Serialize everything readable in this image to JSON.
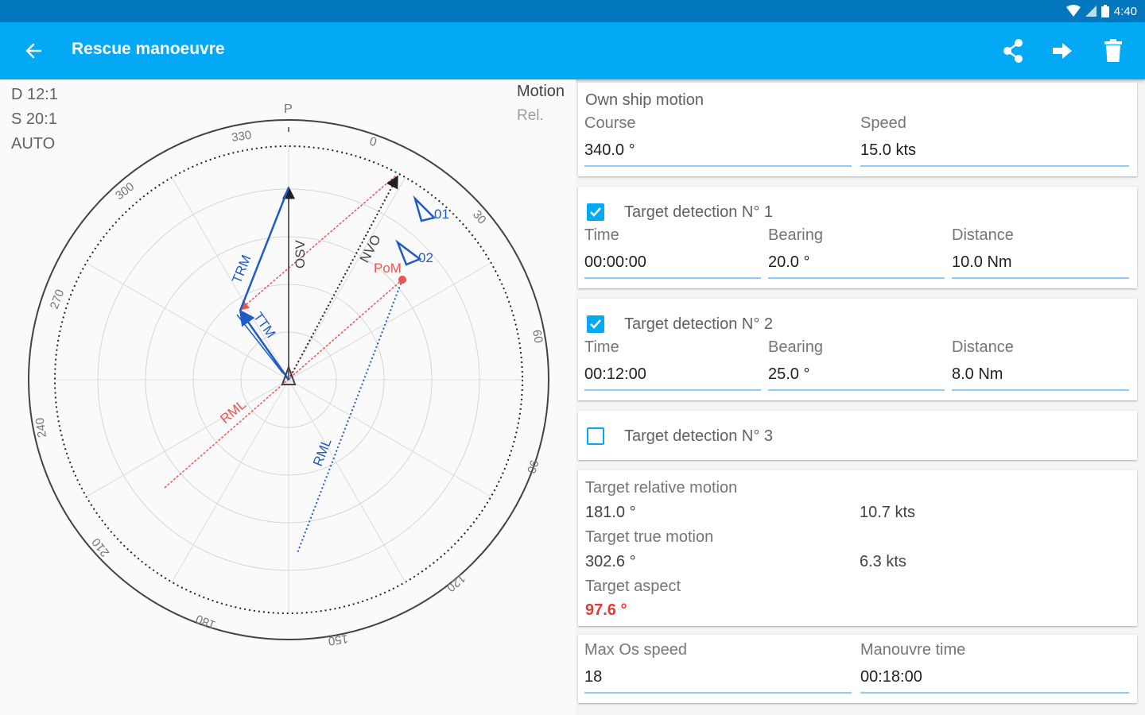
{
  "status_bar": {
    "time": "4:40",
    "icons": [
      "wifi-icon",
      "signal-icon",
      "battery-icon"
    ]
  },
  "app_bar": {
    "title": "Rescue manoeuvre",
    "actions": [
      "share-icon",
      "forward-arrow-icon",
      "delete-icon"
    ],
    "colors": {
      "primary": "#03a9f4",
      "primary_dark": "#0277bd"
    }
  },
  "plot": {
    "scale_d": "D 12:1",
    "scale_s": "S 20:1",
    "mode": "AUTO",
    "motion_label": "Motion",
    "motion_value": "Rel.",
    "north_marker": "P",
    "bearing_labels": [
      "0",
      "30",
      "60",
      "90",
      "120",
      "150",
      "180",
      "210",
      "240",
      "270",
      "300",
      "330"
    ],
    "vector_labels": {
      "own_ship": "OSV",
      "own_new": "NVO",
      "trm": "TRM",
      "ttm": "TTM",
      "rml_1": "RML",
      "rml_2": "RML",
      "pom": "PoM",
      "target_1": "01",
      "target_2": "02"
    },
    "colors": {
      "own": "#616161",
      "relative": "#1e5bc6",
      "rml": "#ef5350",
      "grid": "#bdbdbd"
    }
  },
  "own_ship": {
    "title": "Own ship motion",
    "course_label": "Course",
    "course_value": "340.0 °",
    "speed_label": "Speed",
    "speed_value": "15.0 kts"
  },
  "detections": [
    {
      "title": "Target detection N° 1",
      "checked": true,
      "time_label": "Time",
      "time_value": "00:00:00",
      "bearing_label": "Bearing",
      "bearing_value": "20.0 °",
      "distance_label": "Distance",
      "distance_value": "10.0 Nm"
    },
    {
      "title": "Target detection N° 2",
      "checked": true,
      "time_label": "Time",
      "time_value": "00:12:00",
      "bearing_label": "Bearing",
      "bearing_value": "25.0 °",
      "distance_label": "Distance",
      "distance_value": "8.0 Nm"
    },
    {
      "title": "Target detection N° 3",
      "checked": false
    }
  ],
  "results": {
    "relative_label": "Target relative motion",
    "relative_course": "181.0 °",
    "relative_speed": "10.7 kts",
    "true_label": "Target true motion",
    "true_course": "302.6 °",
    "true_speed": "6.3 kts",
    "aspect_label": "Target aspect",
    "aspect_value": "97.6 °",
    "aspect_color": "#e53935"
  },
  "manoeuvre": {
    "max_speed_label": "Max Os speed",
    "max_speed_value": "18",
    "time_label": "Manouvre time",
    "time_value": "00:18:00"
  }
}
